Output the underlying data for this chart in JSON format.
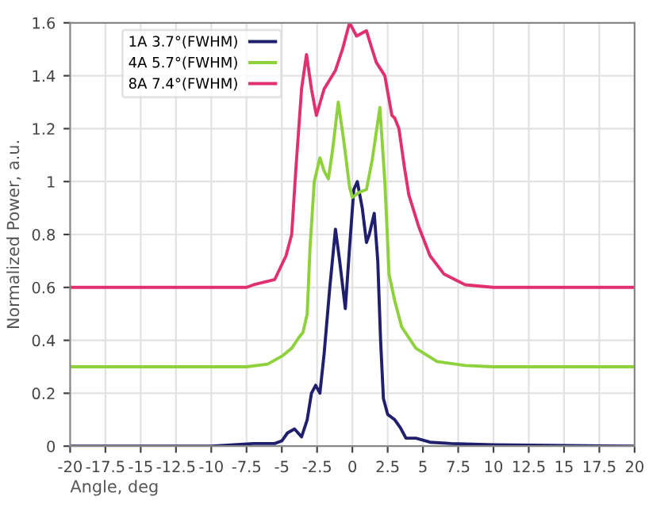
{
  "chart_data": {
    "type": "line",
    "xlabel": "Angle, deg",
    "ylabel": "Normalized Power, a.u.",
    "xlim": [
      -20,
      20
    ],
    "xticks": [
      -20,
      -17.5,
      -15,
      -12.5,
      -10,
      -7.5,
      -5,
      -2.5,
      0,
      2.5,
      5,
      7.5,
      10,
      12.5,
      15,
      17.5,
      20
    ],
    "ylim": [
      0,
      1.6
    ],
    "yticks": [
      0,
      0.2,
      0.4,
      0.6,
      0.8,
      1,
      1.2,
      1.4,
      1.6
    ],
    "grid": true,
    "legend": "top left",
    "marker": "none",
    "line_style": "solid",
    "series": [
      {
        "name": "1A 3.7°(FWHM)",
        "color": "#1f1f6e",
        "x": [
          -20,
          -10,
          -7,
          -5.5,
          -5,
          -4.6,
          -4.1,
          -3.6,
          -3.2,
          -2.9,
          -2.6,
          -2.3,
          -2.0,
          -1.6,
          -1.2,
          -0.9,
          -0.5,
          -0.2,
          0.1,
          0.35,
          0.7,
          1.0,
          1.2,
          1.55,
          1.8,
          2.0,
          2.2,
          2.5,
          3.0,
          3.4,
          3.8,
          4.5,
          5.5,
          7.0,
          10,
          20
        ],
        "values": [
          0,
          0,
          0.01,
          0.01,
          0.02,
          0.05,
          0.065,
          0.035,
          0.1,
          0.2,
          0.23,
          0.2,
          0.35,
          0.6,
          0.82,
          0.7,
          0.52,
          0.75,
          0.97,
          1.0,
          0.9,
          0.77,
          0.8,
          0.88,
          0.7,
          0.4,
          0.18,
          0.12,
          0.1,
          0.07,
          0.03,
          0.03,
          0.015,
          0.01,
          0.005,
          0
        ]
      },
      {
        "name": "4A 5.7°(FWHM)",
        "color": "#8fd13c",
        "x": [
          -20,
          -7.5,
          -6,
          -5,
          -4.3,
          -3.8,
          -3.5,
          -3.2,
          -3.0,
          -2.7,
          -2.3,
          -2.0,
          -1.7,
          -1.4,
          -1.0,
          -0.6,
          -0.2,
          0,
          0.5,
          1.0,
          1.4,
          1.95,
          2.3,
          2.6,
          3.0,
          3.5,
          4.5,
          6,
          8,
          10,
          20
        ],
        "values": [
          0.3,
          0.3,
          0.31,
          0.34,
          0.37,
          0.41,
          0.43,
          0.5,
          0.75,
          1.0,
          1.09,
          1.04,
          1.01,
          1.12,
          1.3,
          1.15,
          0.98,
          0.94,
          0.96,
          0.97,
          1.08,
          1.28,
          1.0,
          0.65,
          0.55,
          0.45,
          0.37,
          0.32,
          0.305,
          0.3,
          0.3
        ]
      },
      {
        "name": "8A 7.4°(FWHM)",
        "color": "#e0306f",
        "x": [
          -20,
          -7.5,
          -7,
          -5.5,
          -4.7,
          -4.3,
          -4.0,
          -3.6,
          -3.25,
          -2.9,
          -2.55,
          -2.0,
          -1.2,
          -0.7,
          -0.2,
          0.3,
          1.0,
          1.4,
          1.7,
          2.3,
          2.8,
          3.0,
          3.3,
          3.7,
          4.0,
          4.7,
          5.5,
          6.5,
          8,
          10,
          20
        ],
        "values": [
          0.6,
          0.6,
          0.61,
          0.63,
          0.72,
          0.8,
          1.05,
          1.35,
          1.48,
          1.35,
          1.25,
          1.35,
          1.42,
          1.5,
          1.6,
          1.55,
          1.57,
          1.5,
          1.45,
          1.4,
          1.25,
          1.24,
          1.2,
          1.05,
          0.95,
          0.83,
          0.72,
          0.65,
          0.61,
          0.6,
          0.6
        ]
      }
    ]
  }
}
